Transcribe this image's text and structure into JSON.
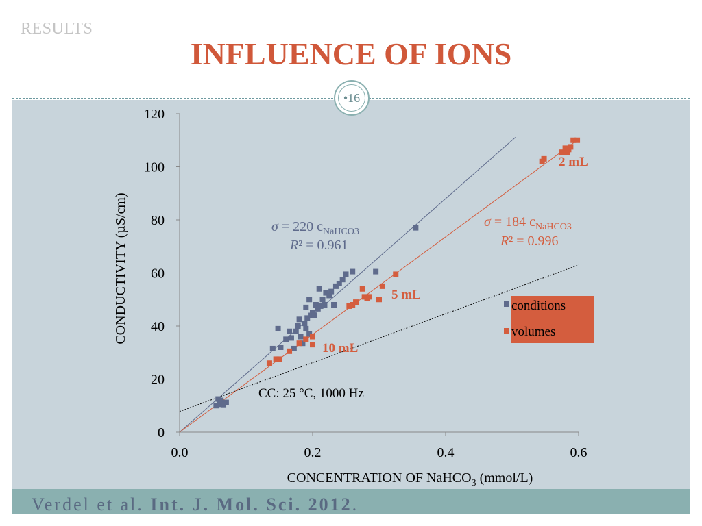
{
  "slide": {
    "section": "RESULTS",
    "title": "INFLUENCE OF IONS",
    "page_number": "•16",
    "footer_authors": "Verdel et al. ",
    "footer_journal": "Int. J. Mol. Sci. 2012",
    "footer_period": "."
  },
  "colors": {
    "title": "#d0583a",
    "conditions": "#5f6b8c",
    "volumes": "#d45d3e",
    "panel": "#c8d4db",
    "footer": "#8ab0b0"
  },
  "chart_data": {
    "type": "scatter",
    "xlabel_main": "CONCENTRATION OF NaHCO",
    "xlabel_sub": "3",
    "xlabel_tail": " (mmol/L)",
    "ylabel": "CONDUCTIVITY (µS/cm)",
    "xlim": [
      0,
      0.6
    ],
    "ylim": [
      0,
      120
    ],
    "x_ticks": [
      "0.0",
      "0.2",
      "0.4",
      "0.6"
    ],
    "x_tick_values": [
      0,
      0.2,
      0.4,
      0.6
    ],
    "y_ticks": [
      "0",
      "20",
      "40",
      "60",
      "80",
      "100",
      "120"
    ],
    "y_tick_values": [
      0,
      20,
      40,
      60,
      80,
      100,
      120
    ],
    "grid": false,
    "legend_position": "right",
    "series": [
      {
        "name": "conditions",
        "color": "#5f6b8c",
        "points": [
          [
            0.055,
            10
          ],
          [
            0.06,
            10.5
          ],
          [
            0.065,
            11
          ],
          [
            0.058,
            12.5
          ],
          [
            0.062,
            12
          ],
          [
            0.07,
            11.2
          ],
          [
            0.066,
            10.4
          ],
          [
            0.14,
            31.5
          ],
          [
            0.148,
            39
          ],
          [
            0.152,
            32
          ],
          [
            0.16,
            35
          ],
          [
            0.165,
            38
          ],
          [
            0.168,
            35.5
          ],
          [
            0.172,
            31.5
          ],
          [
            0.175,
            38
          ],
          [
            0.178,
            40
          ],
          [
            0.18,
            42.5
          ],
          [
            0.182,
            36
          ],
          [
            0.185,
            33.5
          ],
          [
            0.188,
            41
          ],
          [
            0.19,
            39
          ],
          [
            0.19,
            47
          ],
          [
            0.192,
            43
          ],
          [
            0.195,
            50
          ],
          [
            0.195,
            37
          ],
          [
            0.198,
            44
          ],
          [
            0.2,
            45
          ],
          [
            0.203,
            44
          ],
          [
            0.205,
            48
          ],
          [
            0.208,
            46.5
          ],
          [
            0.21,
            54
          ],
          [
            0.212,
            47.5
          ],
          [
            0.215,
            50
          ],
          [
            0.218,
            48
          ],
          [
            0.22,
            52.5
          ],
          [
            0.225,
            51.5
          ],
          [
            0.228,
            53
          ],
          [
            0.232,
            48
          ],
          [
            0.235,
            55
          ],
          [
            0.24,
            56
          ],
          [
            0.245,
            57.5
          ],
          [
            0.25,
            59.5
          ],
          [
            0.26,
            60.5
          ],
          [
            0.295,
            60.5
          ],
          [
            0.355,
            77
          ]
        ]
      },
      {
        "name": "volumes",
        "color": "#d45d3e",
        "points": [
          [
            0.135,
            26
          ],
          [
            0.145,
            27.5
          ],
          [
            0.15,
            27.5
          ],
          [
            0.165,
            30.5
          ],
          [
            0.18,
            33.5
          ],
          [
            0.19,
            35
          ],
          [
            0.2,
            33
          ],
          [
            0.2,
            36
          ],
          [
            0.255,
            47.5
          ],
          [
            0.26,
            48
          ],
          [
            0.265,
            49
          ],
          [
            0.275,
            54
          ],
          [
            0.278,
            51
          ],
          [
            0.282,
            50.5
          ],
          [
            0.285,
            51
          ],
          [
            0.3,
            50
          ],
          [
            0.305,
            55
          ],
          [
            0.325,
            59.5
          ],
          [
            0.545,
            102
          ],
          [
            0.548,
            103
          ],
          [
            0.575,
            105.5
          ],
          [
            0.58,
            107
          ],
          [
            0.583,
            105.5
          ],
          [
            0.585,
            106.5
          ],
          [
            0.588,
            107.5
          ],
          [
            0.592,
            110
          ],
          [
            0.598,
            110
          ]
        ]
      }
    ],
    "fits": [
      {
        "series": "conditions",
        "slope": 220,
        "x_end": 0.505,
        "color": "#5f6b8c"
      },
      {
        "series": "volumes",
        "slope": 184,
        "x_end": 0.595,
        "color": "#d45d3e"
      },
      {
        "series": "cell constant",
        "slope": 92,
        "intercept": 7.8,
        "x_start": 0,
        "x_end": 0.6,
        "color": "#000000",
        "dashed": true
      }
    ],
    "annotations": {
      "conditions_eq_sigma": "σ",
      "conditions_eq_body": " = 220 c",
      "conditions_eq_sub": "NaHCO3",
      "conditions_r2_R": "R",
      "conditions_r2_body": "² = 0.961",
      "volumes_eq_sigma": "σ",
      "volumes_eq_body": " = 184 c",
      "volumes_eq_sub": "NaHCO3",
      "volumes_r2_R": "R",
      "volumes_r2_body": "² = 0.996",
      "label_2ml": "2 mL",
      "label_5ml": "5 mL",
      "label_10ml": "10 mL",
      "cc_note": "CC: 25 °C, 1000 Hz"
    },
    "legend": {
      "items": [
        "conditions",
        "volumes"
      ]
    }
  }
}
